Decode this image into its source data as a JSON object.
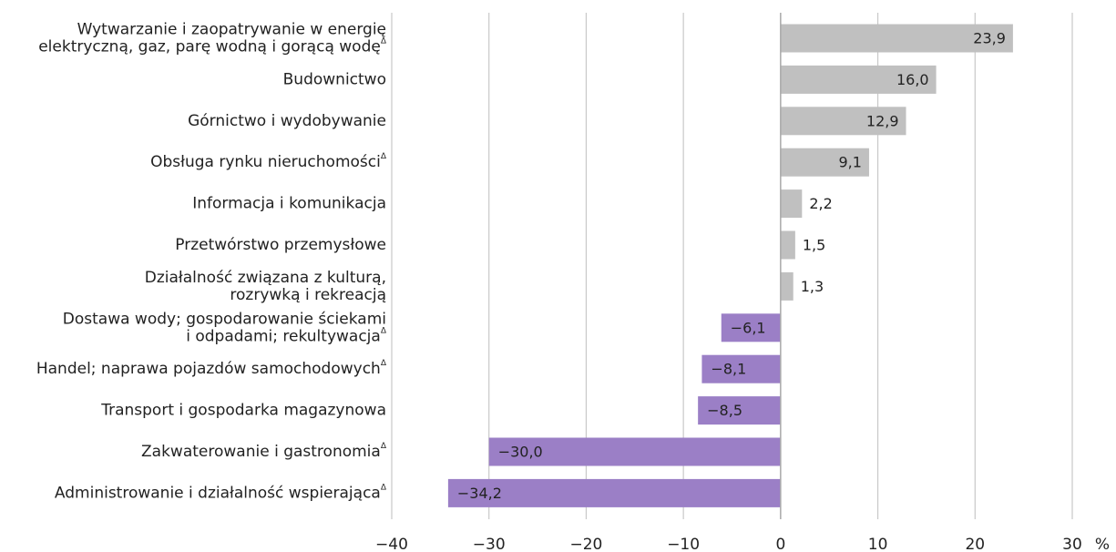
{
  "chart_data": {
    "type": "barh",
    "categories": [
      "Wytwarzanie i zaopatrywanie w energię\nelektryczną, gaz, parę wodną i gorącą wodę",
      "Budownictwo",
      "Górnictwo i wydobywanie",
      "Obsługa rynku nieruchomości",
      "Informacja i komunikacja",
      "Przetwórstwo przemysłowe",
      "Działalność związana z kulturą,\nrozrywką i rekreacją",
      "Dostawa wody; gospodarowanie ściekami\ni odpadami; rekultywacja",
      "Handel; naprawa pojazdów samochodowych",
      "Transport i gospodarka magazynowa",
      "Zakwaterowanie i gastronomia",
      "Administrowanie i działalność wspierająca"
    ],
    "category_marks": [
      "Δ",
      null,
      null,
      "Δ",
      null,
      null,
      null,
      "Δ",
      "Δ",
      null,
      "Δ",
      "Δ"
    ],
    "values": [
      23.9,
      16.0,
      12.9,
      9.1,
      2.2,
      1.5,
      1.3,
      -6.1,
      -8.1,
      -8.5,
      -30.0,
      -34.2
    ],
    "value_labels": [
      "23,9",
      "16,0",
      "12,9",
      "9,1",
      "2,2",
      "1,5",
      "1,3",
      "−6,1",
      "−8,1",
      "−8,5",
      "−30,0",
      "−34,2"
    ],
    "positive_color": "#c0c0c0",
    "negative_color": "#9b7fc6",
    "xlim": [
      -40,
      30
    ],
    "xticks": [
      {
        "value": -40,
        "label": "−40"
      },
      {
        "value": -30,
        "label": "−30"
      },
      {
        "value": -20,
        "label": "−20"
      },
      {
        "value": -10,
        "label": "−10"
      },
      0,
      10,
      20,
      30
    ],
    "x_unit": "%",
    "grid": true
  }
}
